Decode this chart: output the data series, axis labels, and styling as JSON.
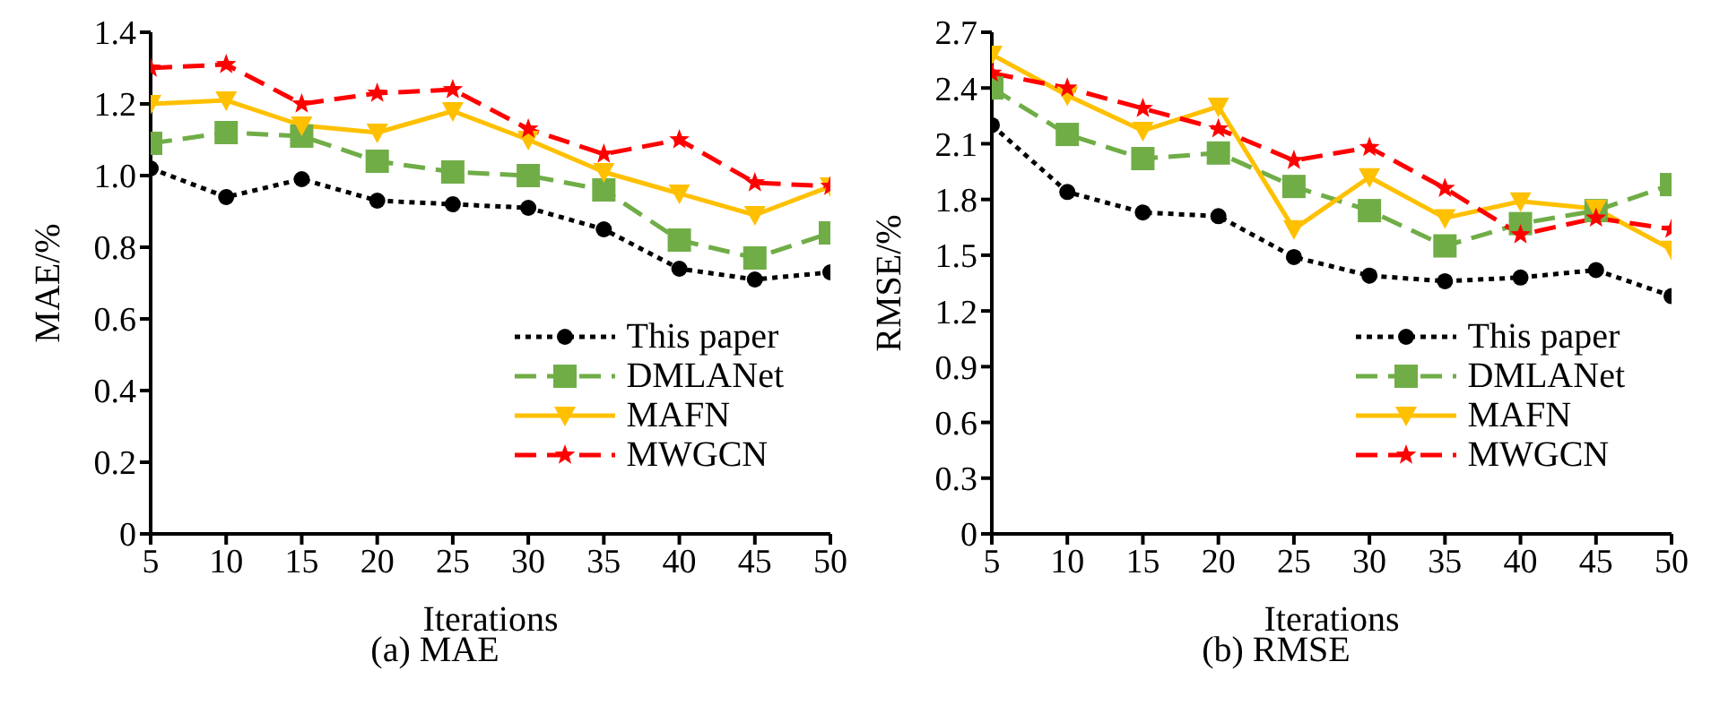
{
  "chart_data": [
    {
      "type": "line",
      "title": "(a) MAE",
      "xlabel": "Iterations",
      "ylabel": "MAE/%",
      "x": [
        5,
        10,
        15,
        20,
        25,
        30,
        35,
        40,
        45,
        50
      ],
      "xlim": [
        5,
        50
      ],
      "xticks": [
        5,
        10,
        15,
        20,
        25,
        30,
        35,
        40,
        45,
        50
      ],
      "ylim": [
        0,
        1.4
      ],
      "yticks": [
        0,
        0.2,
        0.4,
        0.6,
        0.8,
        {
          "value": 1,
          "label": "1.0"
        },
        1.2,
        1.4
      ],
      "grid": false,
      "legend": "bottom right",
      "series": [
        {
          "name": "This paper",
          "color": "#000000",
          "marker": "circle",
          "line_style": "dotted",
          "values": [
            1.02,
            0.94,
            0.99,
            0.93,
            0.92,
            0.91,
            0.85,
            0.74,
            0.71,
            0.73
          ]
        },
        {
          "name": "DMLANet",
          "color": "#70ad47",
          "marker": "square",
          "line_style": "dashed",
          "values": [
            1.09,
            1.12,
            1.11,
            1.04,
            1.01,
            1.0,
            0.96,
            0.82,
            0.77,
            0.84
          ]
        },
        {
          "name": "MAFN",
          "color": "#ffc000",
          "marker": "triangle",
          "line_style": "solid",
          "values": [
            1.2,
            1.21,
            1.14,
            1.12,
            1.18,
            1.1,
            1.01,
            0.95,
            0.89,
            0.97
          ]
        },
        {
          "name": "MWGCN",
          "color": "#ff0000",
          "marker": "star",
          "line_style": "dashed",
          "values": [
            1.3,
            1.31,
            1.2,
            1.23,
            1.24,
            1.13,
            1.06,
            1.1,
            0.98,
            0.97
          ]
        }
      ]
    },
    {
      "type": "line",
      "title": "(b) RMSE",
      "xlabel": "Iterations",
      "ylabel": "RMSE/%",
      "x": [
        5,
        10,
        15,
        20,
        25,
        30,
        35,
        40,
        45,
        50
      ],
      "xlim": [
        5,
        50
      ],
      "xticks": [
        5,
        10,
        15,
        20,
        25,
        30,
        35,
        40,
        45,
        50
      ],
      "ylim": [
        0,
        2.7
      ],
      "yticks": [
        0,
        0.3,
        0.6,
        0.9,
        1.2,
        1.5,
        1.8,
        2.1,
        2.4,
        2.7
      ],
      "grid": false,
      "legend": "bottom right",
      "series": [
        {
          "name": "This paper",
          "color": "#000000",
          "marker": "circle",
          "line_style": "dotted",
          "values": [
            2.2,
            1.84,
            1.73,
            1.71,
            1.49,
            1.39,
            1.36,
            1.38,
            1.42,
            1.28
          ]
        },
        {
          "name": "DMLANet",
          "color": "#70ad47",
          "marker": "square",
          "line_style": "dashed",
          "values": [
            2.4,
            2.15,
            2.02,
            2.05,
            1.87,
            1.74,
            1.55,
            1.67,
            1.74,
            1.88
          ]
        },
        {
          "name": "MAFN",
          "color": "#ffc000",
          "marker": "triangle",
          "line_style": "solid",
          "values": [
            2.58,
            2.36,
            2.17,
            2.3,
            1.64,
            1.92,
            1.7,
            1.79,
            1.75,
            1.53
          ]
        },
        {
          "name": "MWGCN",
          "color": "#ff0000",
          "marker": "star",
          "line_style": "dashed",
          "values": [
            2.48,
            2.4,
            2.29,
            2.18,
            2.01,
            2.08,
            1.86,
            1.61,
            1.7,
            1.64
          ]
        }
      ]
    }
  ]
}
